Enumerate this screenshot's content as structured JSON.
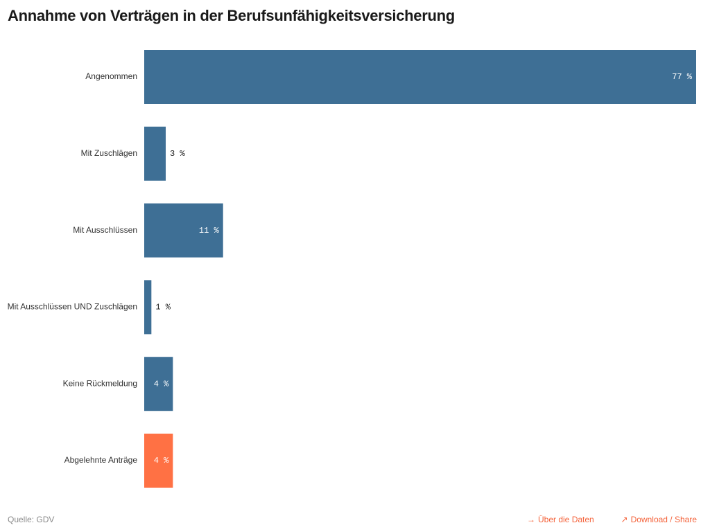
{
  "title": "Annahme von Verträgen in der Berufsunfähigkeitsversicherung",
  "colors": {
    "primary": "#3e6f95",
    "highlight": "#ff7144",
    "link": "#f4623a",
    "value_label_inside": "#ffffff",
    "value_label_outside": "#1a1a1a"
  },
  "footer": {
    "source_prefix": "Quelle:",
    "source_value": "GDV",
    "data_link_label": "Über die Daten",
    "data_link_icon": "arrow-right-icon",
    "share_link_label": "Download / Share",
    "share_link_icon": "arrow-up-right-icon"
  },
  "chart_data": {
    "type": "bar",
    "orientation": "horizontal",
    "categories": [
      "Angenommen",
      "Mit Zuschlägen",
      "Mit Ausschlüssen",
      "Mit Ausschlüssen UND Zuschlägen",
      "Keine Rückmeldung",
      "Abgelehnte Anträge"
    ],
    "values": [
      77,
      3,
      11,
      1,
      4,
      4
    ],
    "value_labels": [
      "77 %",
      "3 %",
      "11 %",
      "1 %",
      "4 %",
      "4 %"
    ],
    "highlighted_category": "Abgelehnte Anträge",
    "xlim": [
      0,
      77
    ],
    "grid": false,
    "title": "Annahme von Verträgen in der Berufsunfähigkeitsversicherung",
    "xlabel": "",
    "ylabel": ""
  }
}
